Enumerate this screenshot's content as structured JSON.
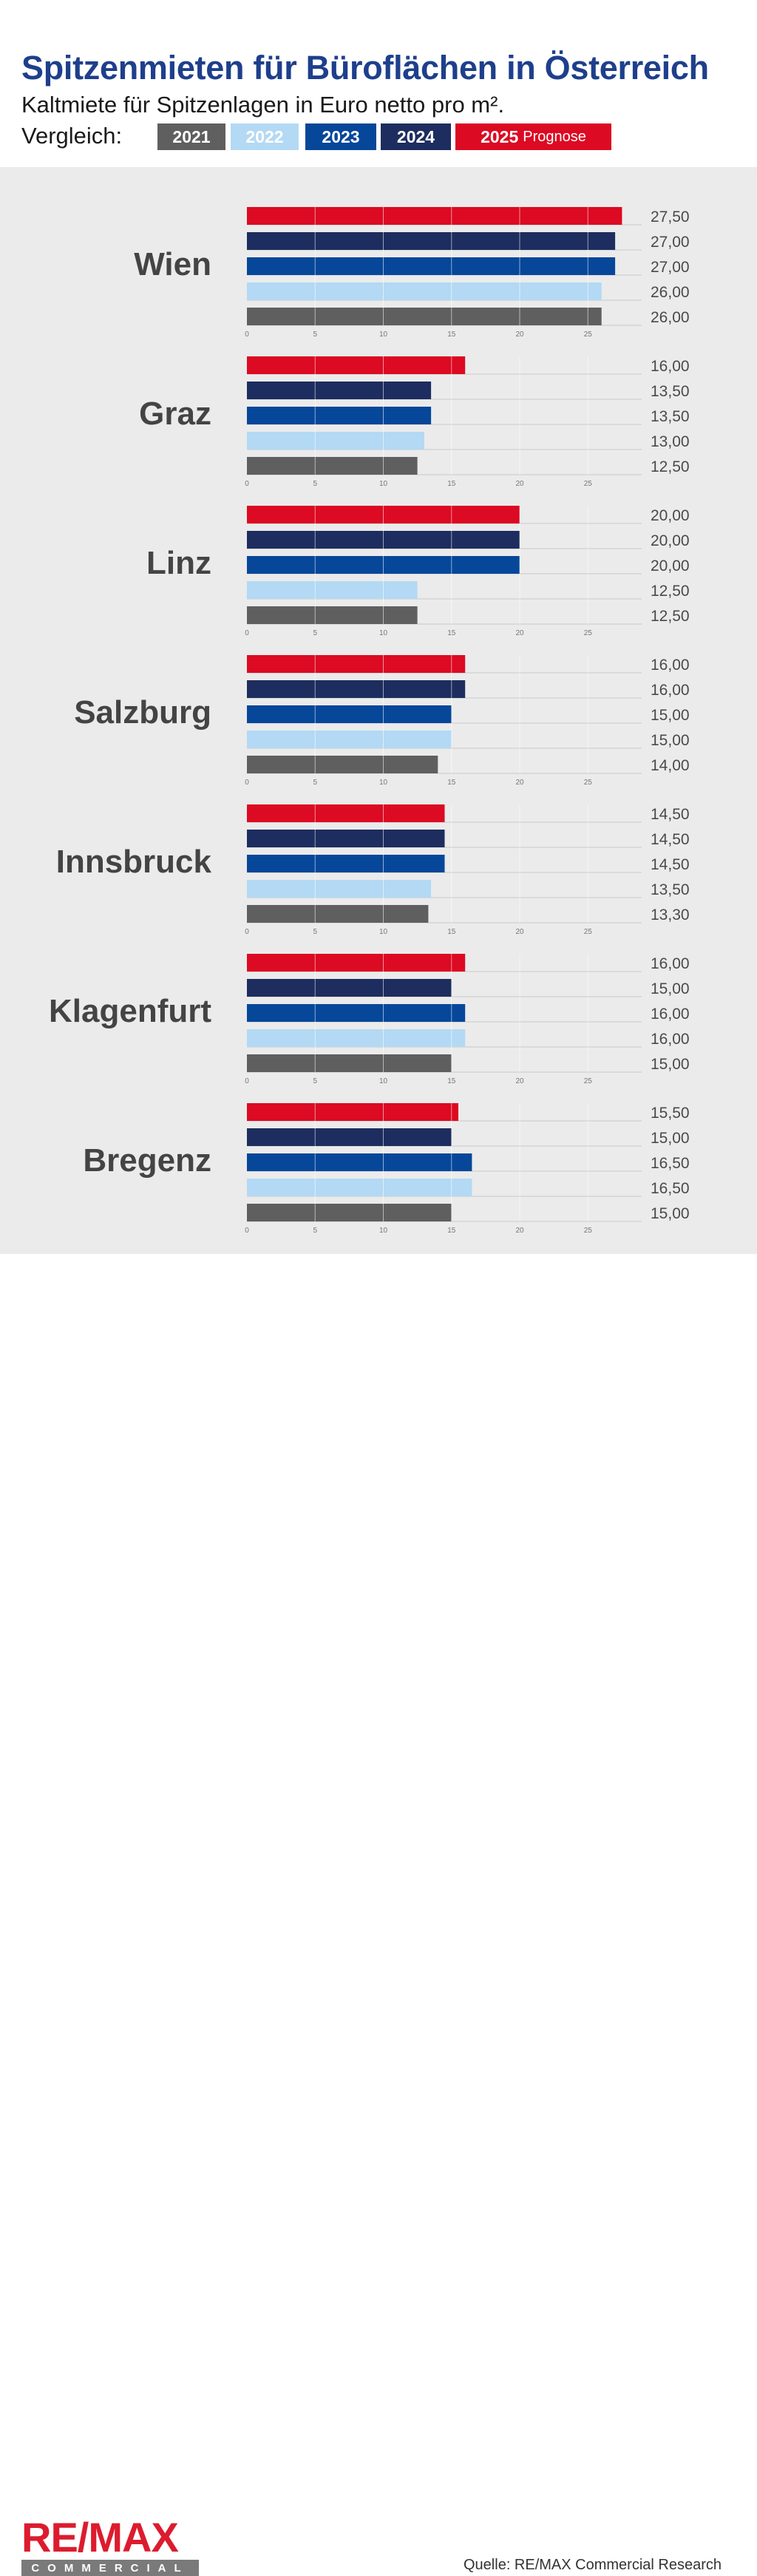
{
  "header": {
    "title": "Spitzenmieten für Büroflächen in Österreich",
    "subtitle": "Kaltmiete für Spitzenlagen in Euro netto pro m².",
    "compare_label": "Vergleich:"
  },
  "legend": [
    {
      "label": "2021",
      "note": "",
      "color": "#5f5f5f"
    },
    {
      "label": "2022",
      "note": "",
      "color": "#b3d9f4"
    },
    {
      "label": "2023",
      "note": "",
      "color": "#06479a"
    },
    {
      "label": "2024",
      "note": "",
      "color": "#1e2d5f"
    },
    {
      "label": "2025",
      "note": "Prognose",
      "color": "#dc0a22"
    }
  ],
  "chart_data": {
    "type": "bar",
    "orientation": "horizontal",
    "xlim": [
      0,
      29
    ],
    "ticks": [
      0,
      5,
      10,
      15,
      20,
      25
    ],
    "grid": true,
    "series_order_top_to_bottom": [
      "2025",
      "2024",
      "2023",
      "2022",
      "2021"
    ],
    "groups": [
      {
        "city": "Wien",
        "values": [
          27.5,
          27.0,
          27.0,
          26.0,
          26.0
        ],
        "labels": [
          "27,50",
          "27,00",
          "27,00",
          "26,00",
          "26,00"
        ]
      },
      {
        "city": "Graz",
        "values": [
          16.0,
          13.5,
          13.5,
          13.0,
          12.5
        ],
        "labels": [
          "16,00",
          "13,50",
          "13,50",
          "13,00",
          "12,50"
        ]
      },
      {
        "city": "Linz",
        "values": [
          20.0,
          20.0,
          20.0,
          12.5,
          12.5
        ],
        "labels": [
          "20,00",
          "20,00",
          "20,00",
          "12,50",
          "12,50"
        ]
      },
      {
        "city": "Salzburg",
        "values": [
          16.0,
          16.0,
          15.0,
          15.0,
          14.0
        ],
        "labels": [
          "16,00",
          "16,00",
          "15,00",
          "15,00",
          "14,00"
        ]
      },
      {
        "city": "Innsbruck",
        "values": [
          14.5,
          14.5,
          14.5,
          13.5,
          13.3
        ],
        "labels": [
          "14,50",
          "14,50",
          "14,50",
          "13,50",
          "13,30"
        ]
      },
      {
        "city": "Klagenfurt",
        "values": [
          16.0,
          15.0,
          16.0,
          16.0,
          15.0
        ],
        "labels": [
          "16,00",
          "15,00",
          "16,00",
          "16,00",
          "15,00"
        ]
      },
      {
        "city": "Bregenz",
        "values": [
          15.5,
          15.0,
          16.5,
          16.5,
          15.0
        ],
        "labels": [
          "15,50",
          "15,00",
          "16,50",
          "16,50",
          "15,00"
        ]
      }
    ]
  },
  "footer": {
    "logo_main": "RE/MAX",
    "logo_sub": "COMMERCIAL",
    "source": "Quelle: RE/MAX Commercial Research"
  }
}
